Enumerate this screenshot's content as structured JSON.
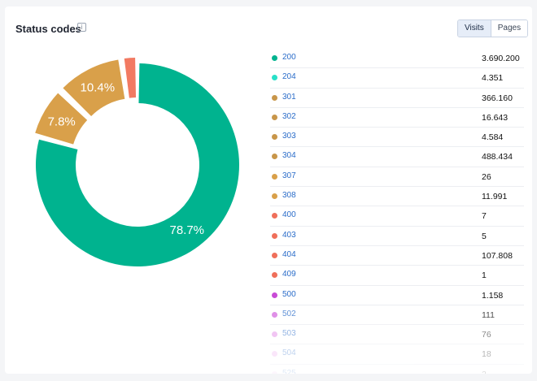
{
  "header": {
    "title": "Status codes",
    "info_icon": "i",
    "toggle": {
      "visits_label": "Visits",
      "pages_label": "Pages",
      "active": "Visits"
    }
  },
  "colors": {
    "teal": "#00b38f",
    "tan": "#d9a04a",
    "coral": "#f27a62",
    "toggle_active_bg": "#e6edf8"
  },
  "chart_data": {
    "type": "pie",
    "slices": [
      {
        "label": "200",
        "value": 78.7,
        "color": "#00b38f",
        "display": "78.7%"
      },
      {
        "label": "301",
        "value": 7.8,
        "color": "#d9a04a",
        "display": "7.8%"
      },
      {
        "label": "304",
        "value": 10.4,
        "color": "#d9a04a",
        "display": "10.4%"
      },
      {
        "label": "404",
        "value": 2.3,
        "color": "#f27a62",
        "display": ""
      }
    ]
  },
  "legend": [
    {
      "code": "200",
      "value": "3.690.200",
      "color": "#00b38f"
    },
    {
      "code": "204",
      "value": "4.351",
      "color": "#29e0c8"
    },
    {
      "code": "301",
      "value": "366.160",
      "color": "#c8964a"
    },
    {
      "code": "302",
      "value": "16.643",
      "color": "#c8964a"
    },
    {
      "code": "303",
      "value": "4.584",
      "color": "#c8964a"
    },
    {
      "code": "304",
      "value": "488.434",
      "color": "#c8964a"
    },
    {
      "code": "307",
      "value": "26",
      "color": "#d9a04a"
    },
    {
      "code": "308",
      "value": "11.991",
      "color": "#d9a04a"
    },
    {
      "code": "400",
      "value": "7",
      "color": "#ef6f5a"
    },
    {
      "code": "403",
      "value": "5",
      "color": "#ef6f5a"
    },
    {
      "code": "404",
      "value": "107.808",
      "color": "#ef6f5a"
    },
    {
      "code": "409",
      "value": "1",
      "color": "#ef6f5a"
    },
    {
      "code": "500",
      "value": "1.158",
      "color": "#c84bd6"
    },
    {
      "code": "502",
      "value": "111",
      "color": "#d56be0"
    },
    {
      "code": "503",
      "value": "76",
      "color": "#e58ce8"
    },
    {
      "code": "504",
      "value": "18",
      "color": "#efaff1"
    },
    {
      "code": "525",
      "value": "2",
      "color": "#f5c9f5"
    }
  ]
}
